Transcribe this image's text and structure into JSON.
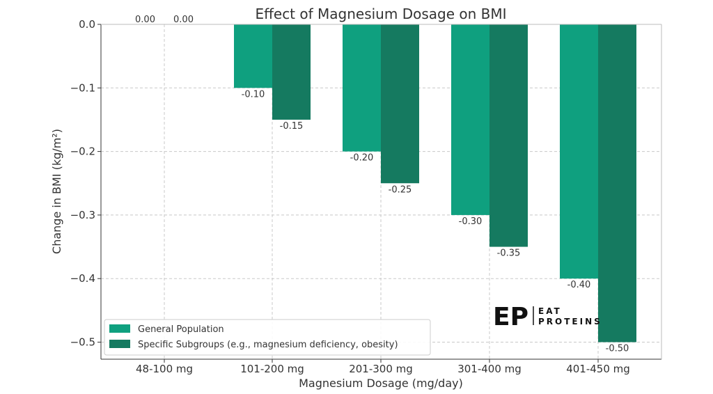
{
  "chart_data": {
    "type": "bar",
    "title": "Effect of Magnesium Dosage on BMI",
    "xlabel": "Magnesium Dosage (mg/day)",
    "ylabel": "Change in BMI (kg/m²)",
    "categories": [
      "48-100 mg",
      "101-200 mg",
      "201-300 mg",
      "301-400 mg",
      "401-450 mg"
    ],
    "series": [
      {
        "name": "General Population",
        "color": "#0fa07f",
        "values": [
          0.0,
          -0.1,
          -0.2,
          -0.3,
          -0.4
        ],
        "value_labels": [
          "0.00",
          "-0.10",
          "-0.20",
          "-0.30",
          "-0.40"
        ]
      },
      {
        "name": "Specific Subgroups (e.g., magnesium deficiency, obesity)",
        "color": "#157a60",
        "values": [
          0.0,
          -0.15,
          -0.25,
          -0.35,
          -0.5
        ],
        "value_labels": [
          "0.00",
          "-0.15",
          "-0.25",
          "-0.35",
          "-0.50"
        ]
      }
    ],
    "ylim": [
      -0.52,
      0.0
    ],
    "yticks": [
      0.0,
      -0.1,
      -0.2,
      -0.3,
      -0.4,
      -0.5
    ],
    "ytick_labels": [
      "0.0",
      "−0.1",
      "−0.2",
      "−0.3",
      "−0.4",
      "−0.5"
    ],
    "grid": true,
    "legend_position": "bottom-left"
  },
  "logo": {
    "mark": "EP",
    "line1": "EAT",
    "line2": "PROTEINS"
  }
}
